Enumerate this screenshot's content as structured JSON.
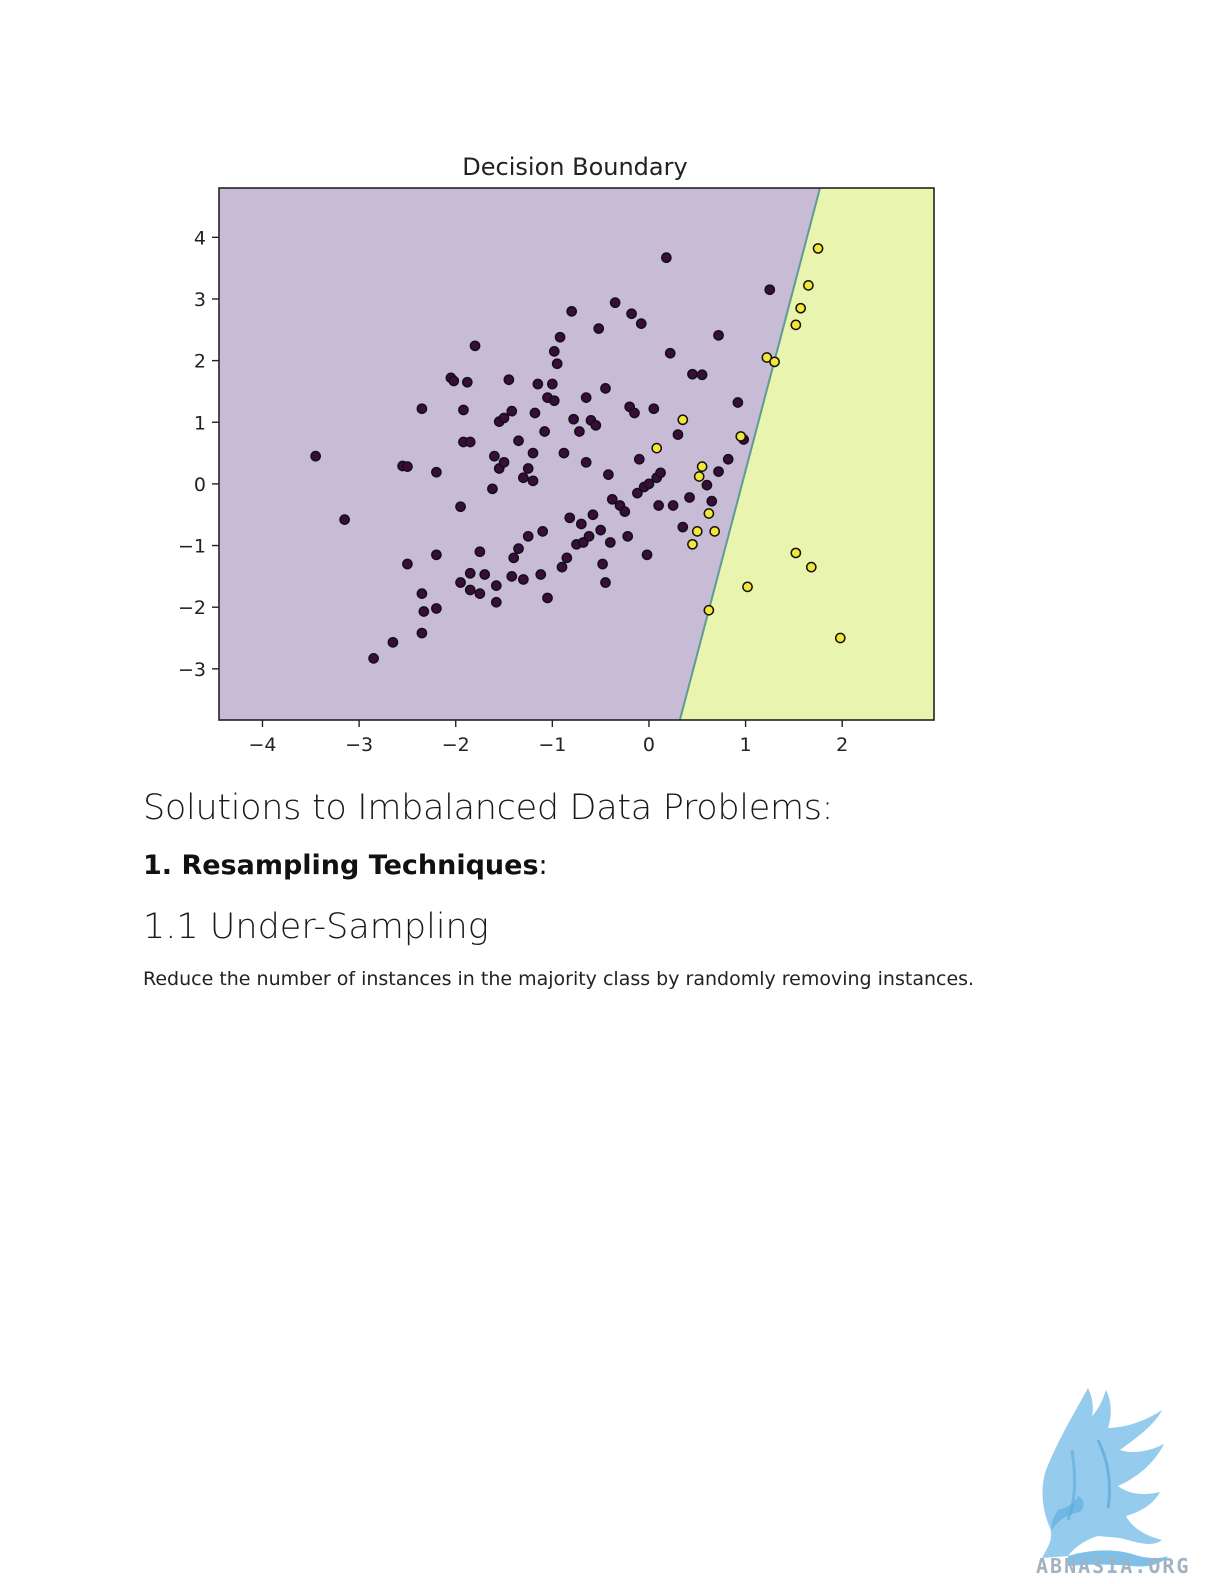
{
  "chart_data": {
    "type": "scatter",
    "title": "Decision Boundary",
    "xlabel": "",
    "ylabel": "",
    "xlim": [
      -4.45,
      2.95
    ],
    "ylim": [
      -3.83,
      4.8
    ],
    "xticks": [
      -4,
      -3,
      -2,
      -1,
      0,
      1,
      2
    ],
    "yticks": [
      -3,
      -2,
      -1,
      0,
      1,
      2,
      3,
      4
    ],
    "xtick_labels": [
      "−4",
      "−3",
      "−2",
      "−1",
      "0",
      "1",
      "2"
    ],
    "ytick_labels": [
      "−3",
      "−2",
      "−1",
      "0",
      "1",
      "2",
      "3",
      "4"
    ],
    "grid": false,
    "decision_boundary": {
      "x_at_bottom": 0.32,
      "x_at_top": 1.77
    },
    "region_colors": {
      "majority": "#c8bbd6",
      "minority": "#e9f4ae",
      "boundary": "#5d9b95"
    },
    "series": [
      {
        "class": 0,
        "color": "#3a0c3e",
        "points": [
          [
            -3.45,
            0.45
          ],
          [
            -3.15,
            -0.58
          ],
          [
            -2.85,
            -2.83
          ],
          [
            -2.65,
            -2.57
          ],
          [
            -2.55,
            0.29
          ],
          [
            -2.5,
            0.28
          ],
          [
            -2.5,
            -1.3
          ],
          [
            -2.35,
            1.22
          ],
          [
            -2.35,
            -1.78
          ],
          [
            -2.33,
            -2.07
          ],
          [
            -2.35,
            -2.42
          ],
          [
            -2.2,
            0.19
          ],
          [
            -2.2,
            -1.15
          ],
          [
            -2.2,
            -2.02
          ],
          [
            -2.05,
            1.72
          ],
          [
            -2.02,
            1.67
          ],
          [
            -1.95,
            -1.6
          ],
          [
            -1.95,
            -0.37
          ],
          [
            -1.92,
            1.2
          ],
          [
            -1.92,
            0.68
          ],
          [
            -1.88,
            1.65
          ],
          [
            -1.85,
            0.68
          ],
          [
            -1.85,
            -1.45
          ],
          [
            -1.85,
            -1.72
          ],
          [
            -1.8,
            2.24
          ],
          [
            -1.75,
            -1.1
          ],
          [
            -1.75,
            -1.78
          ],
          [
            -1.7,
            -1.47
          ],
          [
            -1.62,
            -0.08
          ],
          [
            -1.6,
            0.45
          ],
          [
            -1.58,
            -1.65
          ],
          [
            -1.58,
            -1.92
          ],
          [
            -1.55,
            0.25
          ],
          [
            -1.55,
            1.01
          ],
          [
            -1.5,
            1.07
          ],
          [
            -1.5,
            0.35
          ],
          [
            -1.45,
            1.69
          ],
          [
            -1.42,
            -1.5
          ],
          [
            -1.4,
            -1.2
          ],
          [
            -1.35,
            -1.05
          ],
          [
            -1.3,
            0.1
          ],
          [
            -1.3,
            -1.55
          ],
          [
            -1.25,
            0.25
          ],
          [
            -1.25,
            -0.85
          ],
          [
            -1.2,
            0.5
          ],
          [
            -1.18,
            1.15
          ],
          [
            -1.15,
            1.62
          ],
          [
            -1.12,
            -1.47
          ],
          [
            -1.1,
            -0.77
          ],
          [
            -1.08,
            0.85
          ],
          [
            -1.05,
            -1.85
          ],
          [
            -1.0,
            1.62
          ],
          [
            -0.98,
            2.15
          ],
          [
            -0.95,
            1.95
          ],
          [
            -0.92,
            2.38
          ],
          [
            -0.9,
            -1.35
          ],
          [
            -0.88,
            0.5
          ],
          [
            -0.85,
            -1.2
          ],
          [
            -0.82,
            -0.55
          ],
          [
            -0.8,
            2.8
          ],
          [
            -0.78,
            1.05
          ],
          [
            -0.75,
            -0.98
          ],
          [
            -0.72,
            0.85
          ],
          [
            -0.7,
            -0.65
          ],
          [
            -0.68,
            -0.95
          ],
          [
            -0.65,
            0.35
          ],
          [
            -0.62,
            -0.85
          ],
          [
            -0.6,
            1.03
          ],
          [
            -0.58,
            -0.5
          ],
          [
            -0.55,
            0.95
          ],
          [
            -0.52,
            2.52
          ],
          [
            -0.5,
            -0.75
          ],
          [
            -0.48,
            -1.3
          ],
          [
            -0.45,
            1.55
          ],
          [
            -0.45,
            -1.6
          ],
          [
            -0.42,
            0.15
          ],
          [
            -0.4,
            -0.95
          ],
          [
            -0.38,
            -0.25
          ],
          [
            -0.35,
            2.94
          ],
          [
            -0.3,
            -0.35
          ],
          [
            -0.25,
            -0.45
          ],
          [
            -0.22,
            -0.85
          ],
          [
            -0.2,
            1.25
          ],
          [
            -0.18,
            2.76
          ],
          [
            -0.15,
            1.15
          ],
          [
            -0.12,
            -0.15
          ],
          [
            -0.1,
            0.4
          ],
          [
            -0.08,
            2.6
          ],
          [
            -0.05,
            -0.05
          ],
          [
            -0.02,
            -1.15
          ],
          [
            0.0,
            0.0
          ],
          [
            0.05,
            1.22
          ],
          [
            0.08,
            0.1
          ],
          [
            0.1,
            -0.35
          ],
          [
            0.12,
            0.18
          ],
          [
            0.18,
            3.67
          ],
          [
            0.22,
            2.12
          ],
          [
            0.25,
            -0.35
          ],
          [
            0.3,
            0.8
          ],
          [
            0.35,
            -0.7
          ],
          [
            0.42,
            -0.22
          ],
          [
            0.45,
            1.78
          ],
          [
            0.55,
            1.77
          ],
          [
            0.6,
            -0.02
          ],
          [
            0.65,
            -0.28
          ],
          [
            0.72,
            0.2
          ],
          [
            0.72,
            2.41
          ],
          [
            0.82,
            0.4
          ],
          [
            0.92,
            1.32
          ],
          [
            0.98,
            0.72
          ],
          [
            1.25,
            3.15
          ],
          [
            -1.2,
            0.05
          ],
          [
            -1.35,
            0.7
          ],
          [
            -1.42,
            1.18
          ],
          [
            -1.05,
            1.4
          ],
          [
            -0.65,
            1.4
          ],
          [
            -0.98,
            1.35
          ]
        ]
      },
      {
        "class": 1,
        "color": "#f4e636",
        "points": [
          [
            0.08,
            0.58
          ],
          [
            0.35,
            1.04
          ],
          [
            0.45,
            -0.98
          ],
          [
            0.5,
            -0.77
          ],
          [
            0.52,
            0.12
          ],
          [
            0.55,
            0.28
          ],
          [
            0.62,
            -0.48
          ],
          [
            0.62,
            -2.05
          ],
          [
            0.68,
            -0.77
          ],
          [
            0.95,
            0.77
          ],
          [
            1.02,
            -1.67
          ],
          [
            1.22,
            2.05
          ],
          [
            1.3,
            1.98
          ],
          [
            1.52,
            -1.12
          ],
          [
            1.52,
            2.58
          ],
          [
            1.57,
            2.85
          ],
          [
            1.65,
            3.22
          ],
          [
            1.68,
            -1.35
          ],
          [
            1.75,
            3.82
          ],
          [
            1.98,
            -2.5
          ]
        ]
      }
    ]
  },
  "document": {
    "heading": "Solutions to Imbalanced Data Problems:",
    "subheading_bold": "1. Resampling Techniques",
    "subheading_suffix": ":",
    "section_heading": "1.1 Under-Sampling",
    "paragraph": "Reduce the number of instances in the majority class by randomly removing instances."
  },
  "logo": {
    "text": "ABNASIA.ORG",
    "color": "#9fb3c4",
    "icon": "griffin-icon"
  }
}
